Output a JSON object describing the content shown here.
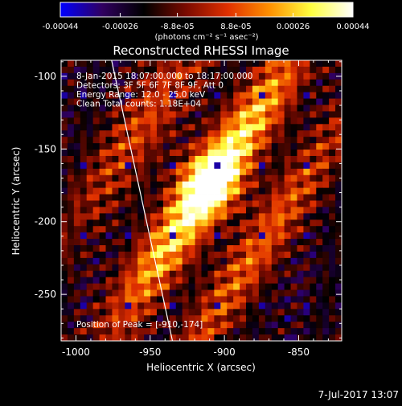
{
  "chart_data": {
    "type": "heatmap",
    "title": "Reconstructed RHESSI Image",
    "colorbar": {
      "ticks": [
        "-0.00044",
        "-0.00026",
        "-8.8e-05",
        "8.8e-05",
        "0.00026",
        "0.00044"
      ],
      "range": [
        -0.00044,
        0.00044
      ],
      "unit_text": "(photons cm⁻² s⁻¹ asec⁻²)",
      "colormap": [
        "#0000ff",
        "#300060",
        "#000000",
        "#7a0a00",
        "#e03000",
        "#ff9000",
        "#ffff40",
        "#ffffff"
      ]
    },
    "xlabel": "Heliocentric X (arcsec)",
    "ylabel": "Heliocentric Y (arcsec)",
    "xlim": [
      -1010,
      -821
    ],
    "ylim": [
      -282,
      -89
    ],
    "xticks": [
      -1000,
      -950,
      -900,
      -850
    ],
    "xtick_labels": [
      "-1000",
      "-950",
      "-900",
      "-850"
    ],
    "yticks": [
      -100,
      -150,
      -200,
      -250
    ],
    "ytick_labels": [
      "-100",
      "-150",
      "-200",
      "-250"
    ],
    "info_lines": [
      "8-Jan-2015 18:07:00.000 to 18:17:00.000",
      "Detectors: 3F 5F 6F 7F 8F 9F, Att 0",
      "Energy Range: 12.0 - 25.0 keV",
      "Clean    Total counts: 1.18E+04"
    ],
    "peak_label": "Position of Peak = [-910,-174]",
    "peak_position": [
      -910,
      -174
    ],
    "limb_line": [
      [
        -976,
        -89
      ],
      [
        -935,
        -282
      ]
    ],
    "date_stamp": "7-Jul-2017 13:07"
  }
}
